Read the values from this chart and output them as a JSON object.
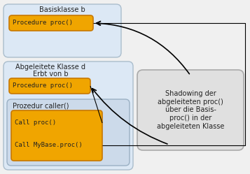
{
  "bg_color": "#f0f0f0",
  "light_blue": "#dce8f5",
  "light_blue2": "#ccdaea",
  "orange_fill": "#f0a500",
  "orange_border": "#c87800",
  "gray_fill": "#e0e0e0",
  "gray_border": "#aaaaaa",
  "basisklasse_label": "Basisklasse b",
  "basisklasse_proc": "Procedure proc()",
  "abgeleitete_label1": "Abgeleitete Klasse d",
  "abgeleitete_label2": "Erbt von b",
  "abgeleitete_proc": "Procedure proc()",
  "prozedur_label": "Prozedur caller()",
  "prozedur_line1": "Call proc()",
  "prozedur_line2": "Call MyBase.proc()",
  "shadowing_text": "Shadowing der\nabgeleiteten proc()\nüber die Basis-\nproc() in der\nabgeleiteten Klasse"
}
